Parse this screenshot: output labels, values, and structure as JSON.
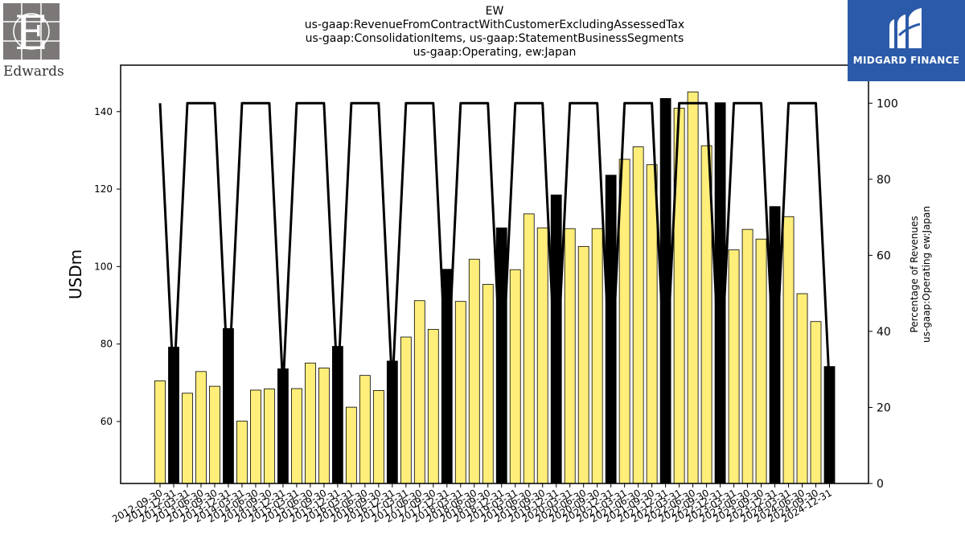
{
  "title_lines": [
    "EW",
    "us-gaap:RevenueFromContractWithCustomerExcludingAssessedTax",
    "us-gaap:ConsolidationItems, us-gaap:StatementBusinessSegments",
    "us-gaap:Operating, ew:Japan"
  ],
  "logos": {
    "left_wordmark": "Edwards",
    "left_monogram": "E",
    "right_brand": "MIDGARD FINANCE"
  },
  "colors": {
    "quarter_bar": "#ffee7a",
    "annual_bar": "#000000",
    "line": "#000000",
    "brand_blue": "#2b5aa8"
  },
  "chart_data": {
    "type": "bar",
    "ylabel": "USDm",
    "ylabel_right": [
      "Percentage of Revenues",
      "us-gaap:Operating ew:Japan"
    ],
    "ylim": [
      44,
      152
    ],
    "yticks": [
      60,
      80,
      100,
      120,
      140
    ],
    "y2lim": [
      0,
      110
    ],
    "y2ticks": [
      0,
      20,
      40,
      60,
      80,
      100
    ],
    "categories": [
      "2012-09-30",
      "2012-12-31",
      "2013-03-31",
      "2013-06-30",
      "2013-09-30",
      "2013-12-31",
      "2014-03-31",
      "2014-06-30",
      "2014-09-30",
      "2014-12-31",
      "2015-03-31",
      "2015-06-30",
      "2015-09-30",
      "2015-12-31",
      "2016-03-31",
      "2016-06-30",
      "2016-09-30",
      "2016-12-31",
      "2017-03-31",
      "2017-06-30",
      "2017-09-30",
      "2017-12-31",
      "2018-03-31",
      "2018-06-30",
      "2018-09-30",
      "2018-12-31",
      "2019-03-31",
      "2019-06-30",
      "2019-09-30",
      "2019-12-31",
      "2020-03-31",
      "2020-06-30",
      "2020-09-30",
      "2020-12-31",
      "2021-03-31",
      "2021-06-30",
      "2021-09-30",
      "2021-12-31",
      "2022-03-31",
      "2022-06-30",
      "2022-09-30",
      "2022-12-31",
      "2023-03-31",
      "2023-06-30",
      "2023-09-30",
      "2023-12-31",
      "2024-03-31",
      "2024-06-30",
      "2024-09-30",
      "2024-12-31"
    ],
    "series": [
      {
        "values": [
          70.5,
          79.2,
          67.3,
          72.9,
          69.1,
          84.0,
          60.1,
          68.1,
          68.4,
          73.6,
          68.5,
          75.1,
          73.8,
          79.4,
          63.7,
          71.9,
          68.0,
          75.6,
          81.8,
          91.2,
          83.8,
          99.3,
          91.0,
          101.9,
          95.4,
          110.0,
          99.2,
          113.6,
          110.0,
          118.5,
          109.8,
          105.2,
          109.8,
          123.6,
          127.7,
          130.9,
          126.3,
          143.4,
          140.9,
          145.1,
          131.2,
          142.3,
          104.3,
          109.6,
          107.1,
          115.5,
          112.9,
          93.0,
          85.8,
          74.2
        ],
        "annual_flags": [
          0,
          1,
          0,
          0,
          0,
          1,
          0,
          0,
          0,
          1,
          0,
          0,
          0,
          1,
          0,
          0,
          0,
          1,
          0,
          0,
          0,
          1,
          0,
          0,
          0,
          1,
          0,
          0,
          0,
          1,
          0,
          0,
          0,
          1,
          0,
          0,
          0,
          1,
          0,
          0,
          0,
          1,
          0,
          0,
          0,
          1,
          0,
          0,
          0,
          1
        ]
      },
      {
        "values": [
          100,
          25,
          100,
          100,
          100,
          25,
          100,
          100,
          100,
          25,
          100,
          100,
          100,
          25,
          100,
          100,
          100,
          25,
          100,
          100,
          100,
          25,
          100,
          100,
          100,
          25,
          100,
          100,
          100,
          25,
          100,
          100,
          100,
          25,
          100,
          100,
          100,
          25,
          100,
          100,
          100,
          25,
          100,
          100,
          100,
          25,
          100,
          100,
          100,
          25
        ]
      }
    ],
    "grid": false,
    "legend": "none"
  }
}
